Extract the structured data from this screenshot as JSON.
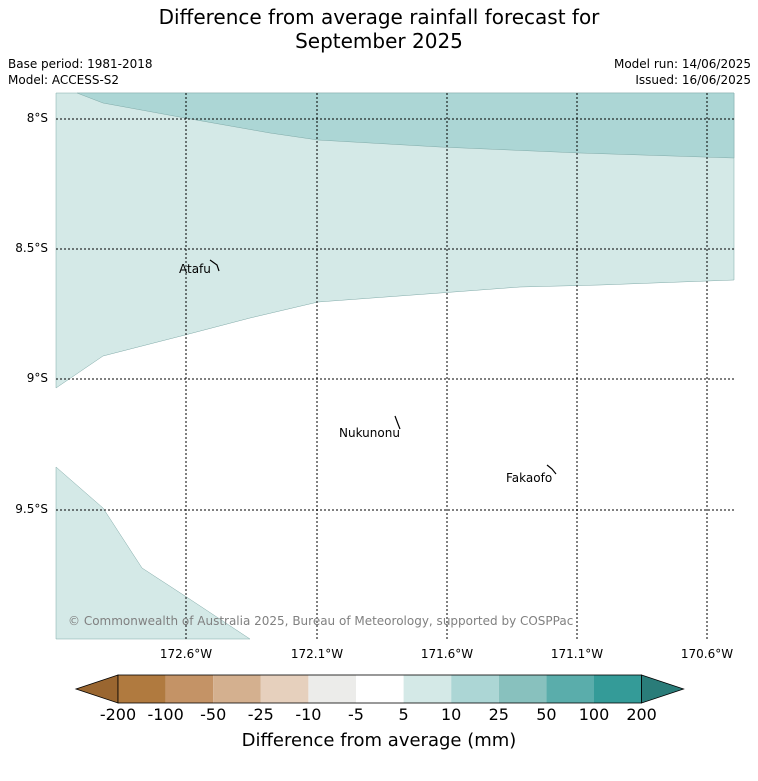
{
  "title": "Difference from average rainfall forecast for",
  "title_line2": "September 2025",
  "meta": {
    "base_period": "Base period: 1981-2018",
    "model": "Model: ACCESS-S2",
    "model_run": "Model run: 14/06/2025",
    "issued": "Issued: 16/06/2025"
  },
  "lat_labels": [
    "8°S",
    "8.5°S",
    "9°S",
    "9.5°S"
  ],
  "lon_labels": [
    "172.6°W",
    "172.1°W",
    "171.6°W",
    "171.1°W",
    "170.6°W"
  ],
  "islands": [
    "Atafu",
    "Nukunonu",
    "Fakaofo"
  ],
  "copyright": "© Commonwealth of Australia 2025, Bureau of Meteorology, supported by COSPPac",
  "colorbar": {
    "labels": [
      "-200",
      "-100",
      "-50",
      "-25",
      "-10",
      "-5",
      "5",
      "10",
      "25",
      "50",
      "100",
      "200"
    ],
    "colors": [
      "#9a6630",
      "#b07a3f",
      "#c49366",
      "#d4b08f",
      "#e6d0bd",
      "#ececea",
      "#ffffff",
      "#d4e9e7",
      "#acd6d5",
      "#88c1be",
      "#5aadab",
      "#349b98",
      "#2a7c79"
    ],
    "title": "Difference from average (mm)"
  },
  "map_colors": {
    "band_10_25": "#acd6d5",
    "band_5_10": "#d4e9e7"
  }
}
